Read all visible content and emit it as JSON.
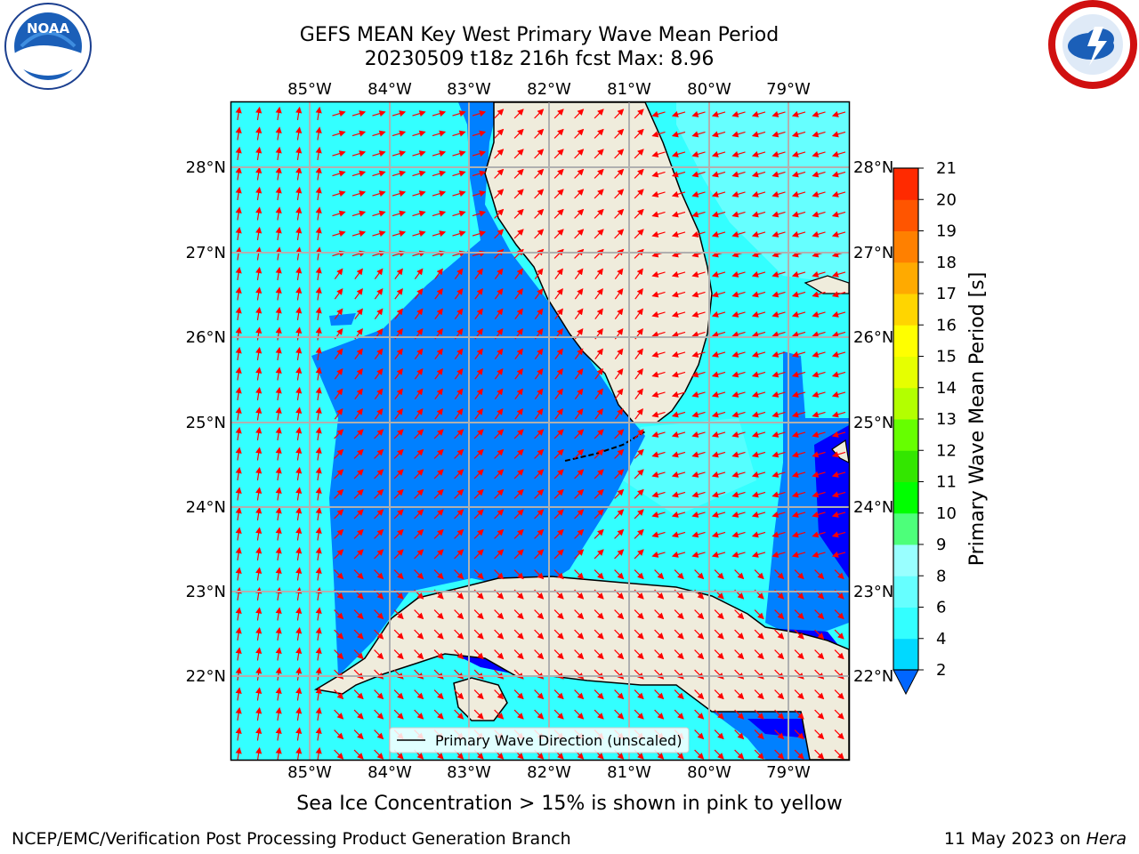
{
  "title": {
    "line1": "GEFS MEAN Key West Primary Wave Mean Period",
    "line2": "20230509 t18z 216h fcst   Max: 8.96"
  },
  "map": {
    "lon_labels": [
      "85°W",
      "84°W",
      "83°W",
      "82°W",
      "81°W",
      "80°W",
      "79°W"
    ],
    "lat_labels": [
      "28°N",
      "27°N",
      "26°N",
      "25°N",
      "24°N",
      "23°N",
      "22°N"
    ],
    "legend_label": "Primary Wave Direction (unscaled)",
    "colors": {
      "land": "#efecdc",
      "ocean_light": "#33ffff",
      "ocean_mid": "#0080ff",
      "ocean_deep": "#0000ff",
      "arrow": "#ff0000"
    }
  },
  "colorbar": {
    "label": "Primary Wave Mean Period [s]",
    "ticks": [
      "2",
      "4",
      "6",
      "8",
      "9",
      "10",
      "11",
      "12",
      "13",
      "14",
      "15",
      "16",
      "17",
      "18",
      "19",
      "20",
      "21"
    ],
    "colors": [
      "#0066ff",
      "#00d9ff",
      "#33ffff",
      "#66ffff",
      "#99ffff",
      "#4dff7a",
      "#00ff00",
      "#33e600",
      "#66ff00",
      "#b3ff00",
      "#e6ff00",
      "#ffff00",
      "#ffd500",
      "#ffaa00",
      "#ff8000",
      "#ff5500",
      "#ff2a00",
      "#ff0000"
    ]
  },
  "notes": {
    "sea_ice": "Sea Ice Concentration > 15% is shown in pink to yellow"
  },
  "footer": {
    "left": "NCEP/EMC/Verification Post Processing Product Generation Branch",
    "right_date": "11 May 2023 on ",
    "right_machine": "Hera"
  },
  "logos": {
    "noaa": "NOAA",
    "nws": "NATIONAL WEATHER SERVICE"
  }
}
